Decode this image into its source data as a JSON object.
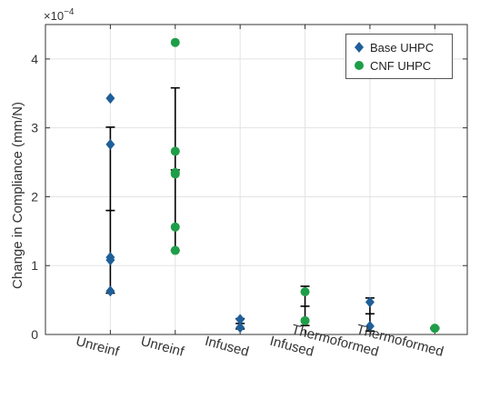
{
  "chart_data": {
    "type": "scatter",
    "ylabel": "Change in Compliance (mm/N)",
    "exponent_label": "×10",
    "exponent_power": "−4",
    "ylim": [
      0,
      4.5
    ],
    "yticks": [
      0,
      1,
      2,
      3,
      4
    ],
    "categories": [
      "Unreinf",
      "Unreinf",
      "Infused",
      "Infused",
      "Thermoformed",
      "Thermoformed"
    ],
    "grid": true,
    "legend_placement": "top-right",
    "series": [
      {
        "name": "Base UHPC",
        "marker": "diamond",
        "color": "#1f5f99",
        "points": [
          {
            "x": 1,
            "y": 3.43
          },
          {
            "x": 1,
            "y": 2.76
          },
          {
            "x": 1,
            "y": 1.12
          },
          {
            "x": 1,
            "y": 1.08
          },
          {
            "x": 1,
            "y": 0.63
          },
          {
            "x": 3,
            "y": 0.22
          },
          {
            "x": 3,
            "y": 0.1
          },
          {
            "x": 5,
            "y": 0.47
          },
          {
            "x": 5,
            "y": 0.12
          }
        ]
      },
      {
        "name": "CNF UHPC",
        "marker": "circle",
        "color": "#1e9e48",
        "points": [
          {
            "x": 2,
            "y": 4.24
          },
          {
            "x": 2,
            "y": 2.66
          },
          {
            "x": 2,
            "y": 2.35
          },
          {
            "x": 2,
            "y": 2.33
          },
          {
            "x": 2,
            "y": 1.56
          },
          {
            "x": 2,
            "y": 1.22
          },
          {
            "x": 4,
            "y": 0.62
          },
          {
            "x": 4,
            "y": 0.2
          },
          {
            "x": 6,
            "y": 0.09
          }
        ]
      }
    ],
    "error_bars": [
      {
        "x": 1,
        "mean": 1.8,
        "low": 0.6,
        "high": 3.01
      },
      {
        "x": 2,
        "mean": 2.39,
        "low": 1.22,
        "high": 3.58
      },
      {
        "x": 3,
        "mean": 0.16,
        "low": 0.08,
        "high": 0.23
      },
      {
        "x": 4,
        "mean": 0.41,
        "low": 0.13,
        "high": 0.7
      },
      {
        "x": 5,
        "mean": 0.3,
        "low": 0.05,
        "high": 0.53
      },
      {
        "x": 6,
        "mean": 0.09,
        "low": 0.08,
        "high": 0.1
      }
    ]
  }
}
